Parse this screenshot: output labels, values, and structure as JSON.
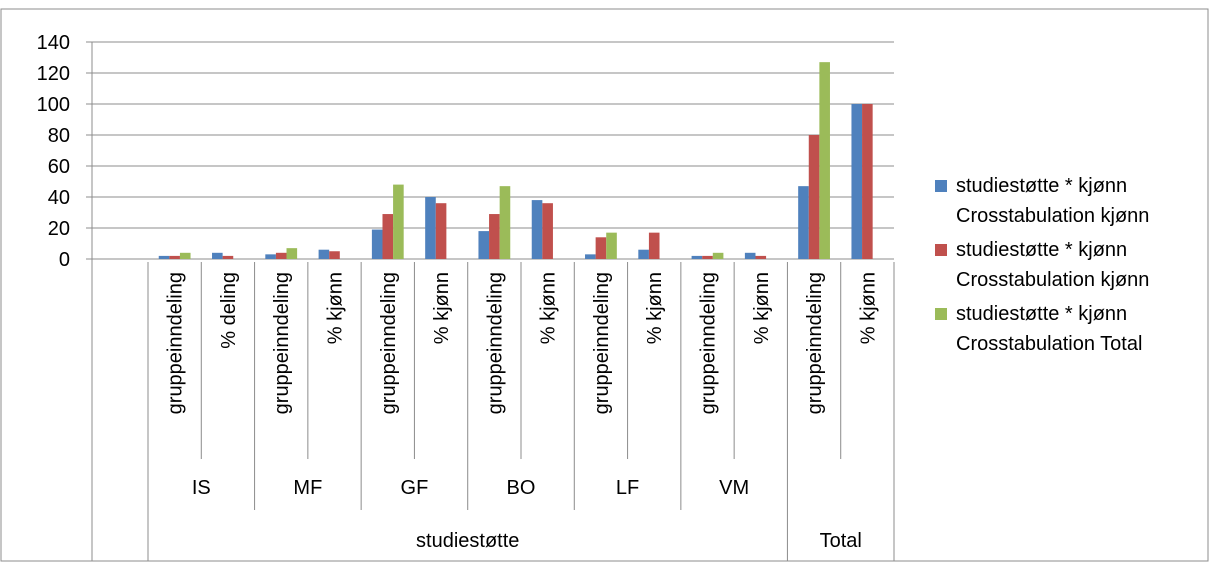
{
  "chart_data": {
    "type": "bar",
    "title": "",
    "xlabel": "",
    "ylabel": "",
    "ylim": [
      0,
      140
    ],
    "yticks": [
      0,
      20,
      40,
      60,
      80,
      100,
      120,
      140
    ],
    "grid": true,
    "legend_position": "right",
    "categories": [
      {
        "label": "gruppeinndeling",
        "group": "IS",
        "super": "studiestøtte"
      },
      {
        "label": "% deling",
        "group": "IS",
        "super": "studiestøtte"
      },
      {
        "label": "gruppeinndeling",
        "group": "MF",
        "super": "studiestøtte"
      },
      {
        "label": "% kjønn",
        "group": "MF",
        "super": "studiestøtte"
      },
      {
        "label": "gruppeinndeling",
        "group": "GF",
        "super": "studiestøtte"
      },
      {
        "label": "%  kjønn",
        "group": "GF",
        "super": "studiestøtte"
      },
      {
        "label": "gruppeinndeling",
        "group": "BO",
        "super": "studiestøtte"
      },
      {
        "label": "% kjønn",
        "group": "BO",
        "super": "studiestøtte"
      },
      {
        "label": "gruppeinndeling",
        "group": "LF",
        "super": "studiestøtte"
      },
      {
        "label": "% kjønn",
        "group": "LF",
        "super": "studiestøtte"
      },
      {
        "label": "gruppeinndeling",
        "group": "VM",
        "super": "studiestøtte"
      },
      {
        "label": "%  kjønn",
        "group": "VM",
        "super": "studiestøtte"
      },
      {
        "label": "gruppeinndeling",
        "group": "",
        "super": "Total"
      },
      {
        "label": "%  kjønn",
        "group": "",
        "super": "Total"
      }
    ],
    "groups": [
      "IS",
      "MF",
      "GF",
      "BO",
      "LF",
      "VM"
    ],
    "supergroups": [
      "studiestøtte",
      "Total"
    ],
    "series": [
      {
        "name": "studiestøtte * kjønn Crosstabulation kjønn",
        "color": "#4f81bd",
        "values": [
          2,
          4,
          3,
          6,
          19,
          40,
          18,
          38,
          3,
          6,
          2,
          4,
          47,
          100
        ]
      },
      {
        "name": "studiestøtte * kjønn Crosstabulation kjønn",
        "color": "#c0504d",
        "values": [
          2,
          2,
          4,
          5,
          29,
          36,
          29,
          36,
          14,
          17,
          2,
          2,
          80,
          100
        ]
      },
      {
        "name": "studiestøtte * kjønn Crosstabulation Total",
        "color": "#9bbb59",
        "values": [
          4,
          null,
          7,
          null,
          48,
          null,
          47,
          null,
          17,
          null,
          4,
          null,
          127,
          null
        ]
      }
    ],
    "legend": [
      {
        "line1": "studiestøtte * kjønn",
        "line2": "Crosstabulation kjønn"
      },
      {
        "line1": "studiestøtte * kjønn",
        "line2": "Crosstabulation kjønn"
      },
      {
        "line1": "studiestøtte * kjønn",
        "line2": "Crosstabulation Total"
      }
    ]
  }
}
